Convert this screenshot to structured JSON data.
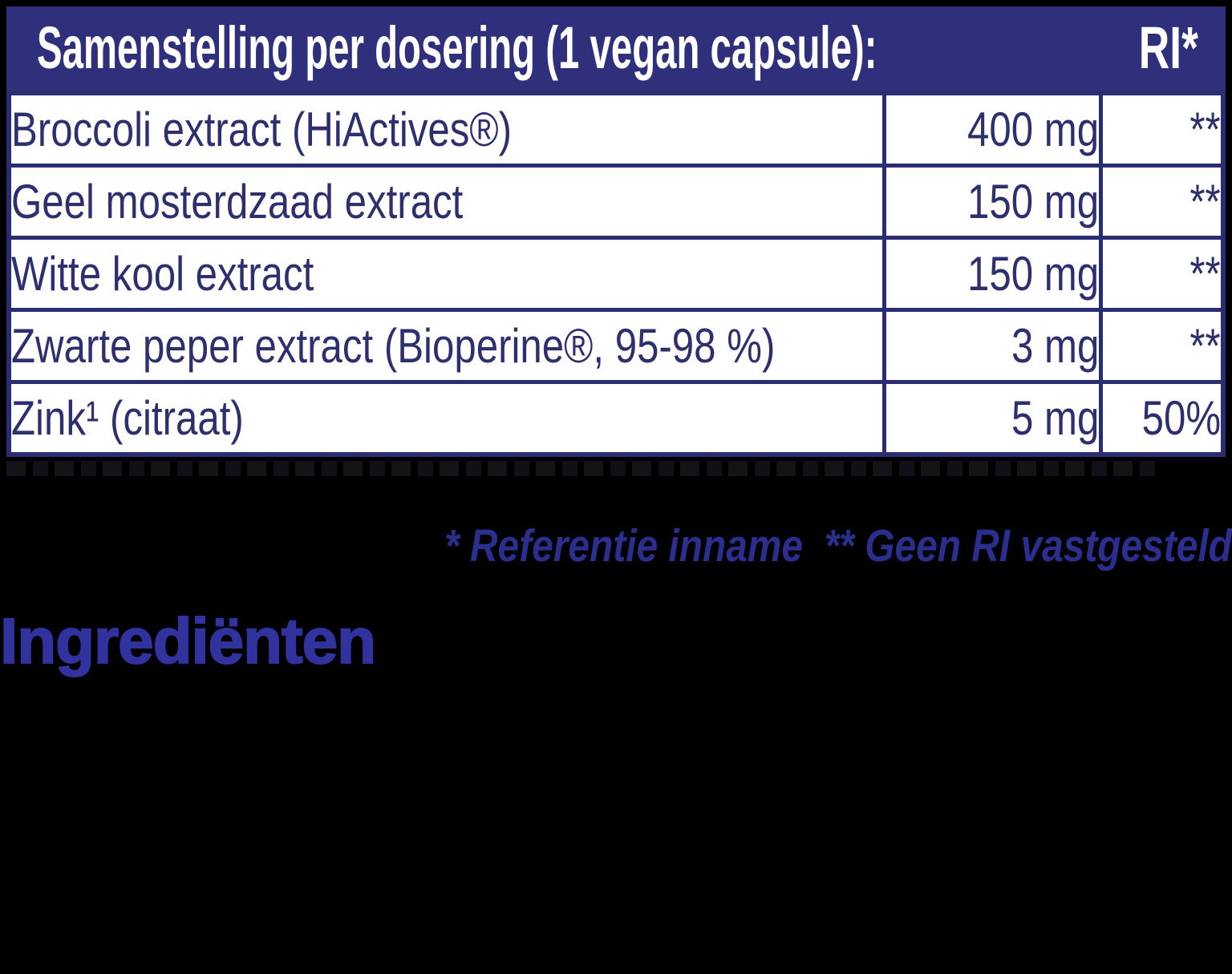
{
  "colors": {
    "background": "#000000",
    "header_bg": "#2F2F7B",
    "header_text": "#FFFFFF",
    "table_border": "#2B2D73",
    "cell_bg": "#FFFFFF",
    "cell_text": "#2D2F6E",
    "footnote_text": "#2B2E8C",
    "heading_text": "#32329E"
  },
  "table": {
    "title": "Samenstelling per dosering (1 vegan capsule):",
    "ri_header": "RI*",
    "rows": [
      {
        "name": "Broccoli extract (HiActives®)",
        "amount": "400 mg",
        "ri": "**"
      },
      {
        "name": "Geel mosterdzaad extract",
        "amount": "150 mg",
        "ri": "**"
      },
      {
        "name": "Witte kool extract",
        "amount": "150 mg",
        "ri": "**"
      },
      {
        "name": "Zwarte peper extract (Bioperine®, 95-98 %)",
        "amount": "3 mg",
        "ri": "**"
      },
      {
        "name": "Zink¹ (citraat)",
        "amount": "5 mg",
        "ri": "50%"
      }
    ]
  },
  "footnote": "* Referentie inname  ** Geen RI vastgesteld",
  "heading": "Ingrediënten"
}
